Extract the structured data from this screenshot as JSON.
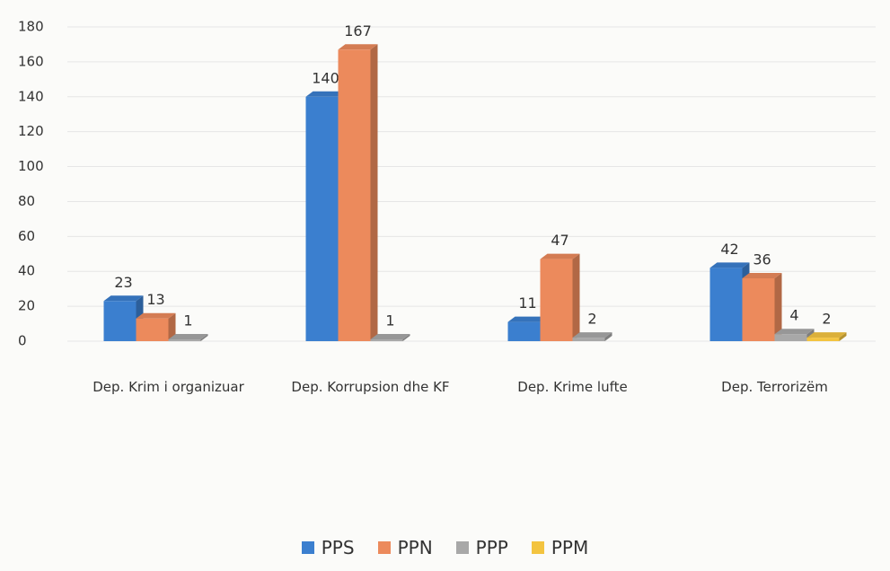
{
  "chart_data": {
    "type": "bar",
    "categories": [
      "Dep. Krim i organizuar",
      "Dep. Korrupsion dhe KF",
      "Dep. Krime lufte",
      "Dep. Terrorizëm"
    ],
    "series": [
      {
        "name": "PPS",
        "color": "#3b7fcf",
        "values": [
          23,
          140,
          11,
          42
        ]
      },
      {
        "name": "PPN",
        "color": "#ec8a5c",
        "values": [
          13,
          167,
          47,
          36
        ]
      },
      {
        "name": "PPP",
        "color": "#a8a8a8",
        "values": [
          1,
          1,
          2,
          4
        ]
      },
      {
        "name": "PPM",
        "color": "#f3c440",
        "values": [
          null,
          null,
          null,
          2
        ]
      }
    ],
    "ylim": [
      0,
      180
    ],
    "yticks": [
      0,
      20,
      40,
      60,
      80,
      100,
      120,
      140,
      160,
      180
    ],
    "grid": true,
    "legend": "bottom"
  }
}
